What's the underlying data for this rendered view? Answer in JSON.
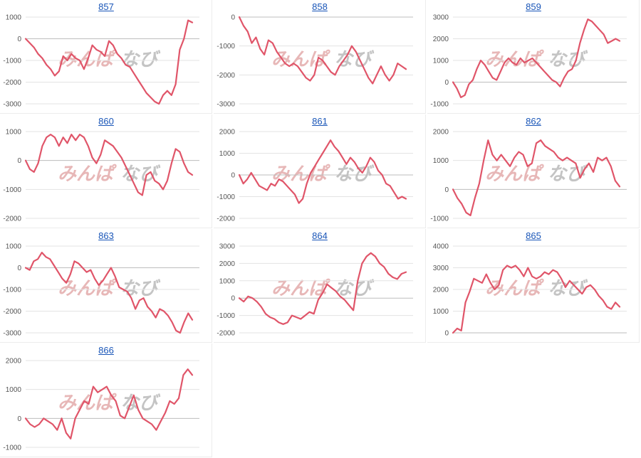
{
  "chart_data": [
    {
      "type": "line",
      "title": "857",
      "yticks": [
        1000,
        0,
        -1000,
        -2000,
        -3000
      ],
      "ylim": [
        -3000,
        1000
      ],
      "color": "#e05569",
      "values": [
        0,
        -200,
        -400,
        -700,
        -900,
        -1200,
        -1400,
        -1700,
        -1500,
        -800,
        -1000,
        -700,
        -900,
        -1000,
        -1400,
        -900,
        -300,
        -500,
        -600,
        -800,
        -100,
        -300,
        -700,
        -900,
        -1200,
        -1300,
        -1600,
        -1900,
        -2200,
        -2500,
        -2700,
        -2900,
        -3000,
        -2600,
        -2400,
        -2600,
        -2100,
        -500,
        0,
        850,
        750
      ]
    },
    {
      "type": "line",
      "title": "858",
      "yticks": [
        0,
        -1000,
        -2000,
        -3000
      ],
      "ylim": [
        -3000,
        0
      ],
      "color": "#e05569",
      "values": [
        0,
        -300,
        -500,
        -900,
        -700,
        -1100,
        -1300,
        -800,
        -900,
        -1200,
        -1400,
        -1600,
        -1700,
        -1600,
        -1700,
        -1900,
        -2100,
        -2200,
        -2000,
        -1400,
        -1500,
        -1700,
        -1900,
        -2000,
        -1700,
        -1500,
        -1300,
        -1000,
        -1200,
        -1500,
        -1800,
        -2100,
        -2300,
        -2000,
        -1700,
        -2000,
        -2200,
        -2000,
        -1600,
        -1700,
        -1800
      ]
    },
    {
      "type": "line",
      "title": "859",
      "yticks": [
        3000,
        2000,
        1000,
        0,
        -1000
      ],
      "ylim": [
        -1000,
        3000
      ],
      "color": "#e05569",
      "values": [
        0,
        -300,
        -700,
        -600,
        -100,
        100,
        600,
        1000,
        800,
        500,
        200,
        100,
        500,
        900,
        1100,
        900,
        800,
        1100,
        900,
        1000,
        1100,
        900,
        700,
        500,
        300,
        100,
        0,
        -200,
        200,
        500,
        600,
        1000,
        1800,
        2400,
        2900,
        2800,
        2600,
        2400,
        2200,
        1800,
        1900,
        2000,
        1900
      ]
    },
    {
      "type": "line",
      "title": "860",
      "yticks": [
        1000,
        0,
        -1000,
        -2000
      ],
      "ylim": [
        -2000,
        1000
      ],
      "color": "#e05569",
      "values": [
        0,
        -300,
        -400,
        -100,
        500,
        800,
        900,
        800,
        500,
        800,
        600,
        900,
        700,
        900,
        800,
        500,
        100,
        -100,
        200,
        700,
        600,
        500,
        300,
        100,
        -200,
        -500,
        -800,
        -1100,
        -1200,
        -500,
        -400,
        -700,
        -800,
        -1000,
        -700,
        -100,
        400,
        300,
        -100,
        -400,
        -500
      ]
    },
    {
      "type": "line",
      "title": "861",
      "yticks": [
        2000,
        1000,
        0,
        -1000,
        -2000
      ],
      "ylim": [
        -2000,
        2000
      ],
      "color": "#e05569",
      "values": [
        0,
        -400,
        -200,
        100,
        -200,
        -500,
        -600,
        -700,
        -400,
        -500,
        -200,
        -300,
        -500,
        -700,
        -900,
        -1300,
        -1100,
        -400,
        100,
        400,
        700,
        1000,
        1300,
        1600,
        1300,
        1100,
        800,
        500,
        800,
        600,
        300,
        100,
        400,
        800,
        600,
        200,
        0,
        -400,
        -500,
        -800,
        -1100,
        -1000,
        -1100
      ]
    },
    {
      "type": "line",
      "title": "862",
      "yticks": [
        2000,
        1000,
        0,
        -1000
      ],
      "ylim": [
        -1000,
        2000
      ],
      "color": "#e05569",
      "values": [
        0,
        -300,
        -500,
        -800,
        -900,
        -300,
        200,
        1000,
        1700,
        1200,
        1000,
        1200,
        1000,
        800,
        1100,
        1300,
        1200,
        800,
        900,
        1600,
        1700,
        1500,
        1400,
        1300,
        1100,
        1000,
        1100,
        1000,
        900,
        400,
        700,
        900,
        600,
        1100,
        1000,
        1100,
        800,
        300,
        100
      ]
    },
    {
      "type": "line",
      "title": "863",
      "yticks": [
        1000,
        0,
        -1000,
        -2000,
        -3000
      ],
      "ylim": [
        -3000,
        1000
      ],
      "color": "#e05569",
      "values": [
        0,
        -100,
        300,
        400,
        700,
        500,
        400,
        100,
        -200,
        -500,
        -700,
        -300,
        300,
        200,
        0,
        -200,
        -100,
        -500,
        -800,
        -600,
        -300,
        0,
        -400,
        -900,
        -1000,
        -1100,
        -1400,
        -1900,
        -1500,
        -1400,
        -1800,
        -2000,
        -2300,
        -1900,
        -2000,
        -2200,
        -2500,
        -2900,
        -3000,
        -2500,
        -2100,
        -2400
      ]
    },
    {
      "type": "line",
      "title": "864",
      "yticks": [
        3000,
        2000,
        1000,
        0,
        -1000,
        -2000
      ],
      "ylim": [
        -2000,
        3000
      ],
      "color": "#e05569",
      "values": [
        0,
        -200,
        100,
        0,
        -200,
        -500,
        -900,
        -1100,
        -1200,
        -1400,
        -1500,
        -1400,
        -1000,
        -1100,
        -1200,
        -1000,
        -800,
        -900,
        -100,
        300,
        800,
        600,
        400,
        100,
        -100,
        -400,
        -700,
        1000,
        2000,
        2400,
        2600,
        2400,
        2000,
        1800,
        1400,
        1200,
        1100,
        1400,
        1500
      ]
    },
    {
      "type": "line",
      "title": "865",
      "yticks": [
        4000,
        3000,
        2000,
        1000,
        0
      ],
      "ylim": [
        0,
        4000
      ],
      "color": "#e05569",
      "values": [
        0,
        200,
        100,
        1400,
        1900,
        2500,
        2400,
        2300,
        2700,
        2300,
        2000,
        2200,
        2900,
        3100,
        3000,
        3100,
        2900,
        2600,
        3000,
        2600,
        2500,
        2600,
        2800,
        2700,
        2900,
        2800,
        2500,
        2100,
        2400,
        2200,
        2000,
        1800,
        2100,
        2200,
        2000,
        1700,
        1500,
        1200,
        1100,
        1400,
        1200
      ]
    },
    {
      "type": "line",
      "title": "866",
      "yticks": [
        2000,
        1000,
        0,
        -1000
      ],
      "ylim": [
        -1000,
        2000
      ],
      "color": "#e05569",
      "values": [
        0,
        -200,
        -300,
        -200,
        0,
        -100,
        -200,
        -400,
        0,
        -500,
        -700,
        0,
        300,
        600,
        500,
        1100,
        900,
        1000,
        1100,
        800,
        600,
        100,
        0,
        400,
        800,
        300,
        0,
        -100,
        -200,
        -400,
        -100,
        200,
        600,
        500,
        700,
        1500,
        1700,
        1500
      ]
    }
  ],
  "watermark": {
    "text_left": "みんぱ",
    "text_right": "なび",
    "color_left": "#e7b7b7",
    "color_right": "#c4c4c4"
  }
}
